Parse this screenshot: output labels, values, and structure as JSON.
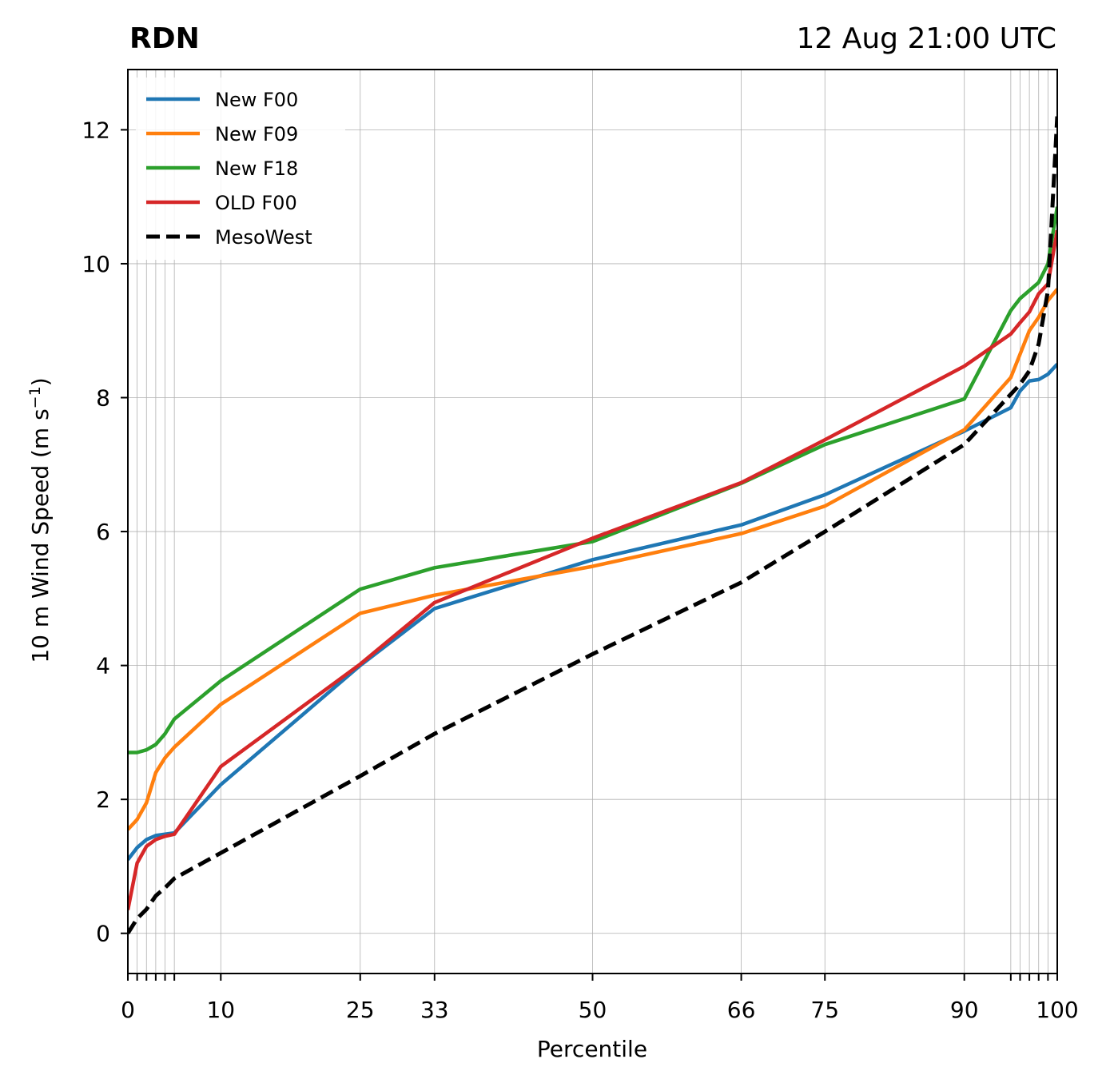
{
  "chart_data": {
    "type": "line",
    "title": "RDN",
    "subtitle": "12 Aug 21:00 UTC",
    "xlabel": "Percentile",
    "ylabel": "10 m Wind Speed (m s",
    "ylabel_sup": "−1",
    "ylabel_close": ")",
    "xlim": [
      0,
      100
    ],
    "ylim": [
      -0.6,
      12.9
    ],
    "x_ticks": [
      0,
      10,
      25,
      33,
      50,
      66,
      75,
      90,
      100
    ],
    "x_minor_ticks": [
      1,
      2,
      3,
      4,
      5,
      95,
      96,
      97,
      98,
      99
    ],
    "y_ticks": [
      0,
      2,
      4,
      6,
      8,
      10,
      12
    ],
    "grid": true,
    "legend_position": "top-left",
    "series": [
      {
        "name": "New F00",
        "color": "#1f77b4",
        "dash": "solid",
        "x": [
          0,
          1,
          2,
          3,
          4,
          5,
          10,
          25,
          33,
          50,
          66,
          75,
          90,
          95,
          96,
          97,
          98,
          99,
          100
        ],
        "y": [
          1.1,
          1.28,
          1.4,
          1.46,
          1.48,
          1.5,
          2.22,
          4.0,
          4.85,
          5.58,
          6.1,
          6.55,
          7.5,
          7.85,
          8.1,
          8.25,
          8.27,
          8.35,
          8.5
        ]
      },
      {
        "name": "New F09",
        "color": "#ff7f0e",
        "dash": "solid",
        "x": [
          0,
          1,
          2,
          3,
          4,
          5,
          10,
          25,
          33,
          50,
          66,
          75,
          90,
          95,
          96,
          97,
          98,
          99,
          100
        ],
        "y": [
          1.55,
          1.7,
          1.95,
          2.4,
          2.62,
          2.78,
          3.42,
          4.78,
          5.05,
          5.48,
          5.97,
          6.38,
          7.52,
          8.3,
          8.65,
          9.0,
          9.2,
          9.45,
          9.62
        ]
      },
      {
        "name": "New F18",
        "color": "#2ca02c",
        "dash": "solid",
        "x": [
          0,
          1,
          2,
          3,
          4,
          5,
          10,
          25,
          33,
          50,
          66,
          75,
          90,
          95,
          96,
          97,
          98,
          99,
          100
        ],
        "y": [
          2.7,
          2.7,
          2.74,
          2.82,
          2.98,
          3.2,
          3.77,
          5.14,
          5.46,
          5.85,
          6.72,
          7.3,
          7.98,
          9.3,
          9.48,
          9.6,
          9.72,
          10.0,
          10.85
        ]
      },
      {
        "name": "OLD F00",
        "color": "#d62728",
        "dash": "solid",
        "x": [
          0,
          1,
          2,
          3,
          4,
          5,
          10,
          25,
          33,
          50,
          66,
          75,
          90,
          95,
          96,
          97,
          98,
          99,
          100
        ],
        "y": [
          0.35,
          1.05,
          1.3,
          1.4,
          1.45,
          1.48,
          2.49,
          4.02,
          4.94,
          5.9,
          6.73,
          7.37,
          8.47,
          8.95,
          9.12,
          9.28,
          9.55,
          9.7,
          10.5
        ]
      },
      {
        "name": "MesoWest",
        "color": "#000000",
        "dash": "dashed",
        "x": [
          0,
          1,
          2,
          3,
          4,
          5,
          10,
          25,
          33,
          50,
          66,
          75,
          90,
          95,
          96,
          97,
          98,
          99,
          100
        ],
        "y": [
          0.0,
          0.22,
          0.36,
          0.56,
          0.68,
          0.82,
          1.2,
          2.35,
          2.98,
          4.17,
          5.24,
          6.0,
          7.3,
          8.05,
          8.2,
          8.4,
          8.8,
          9.6,
          12.2
        ]
      }
    ]
  }
}
